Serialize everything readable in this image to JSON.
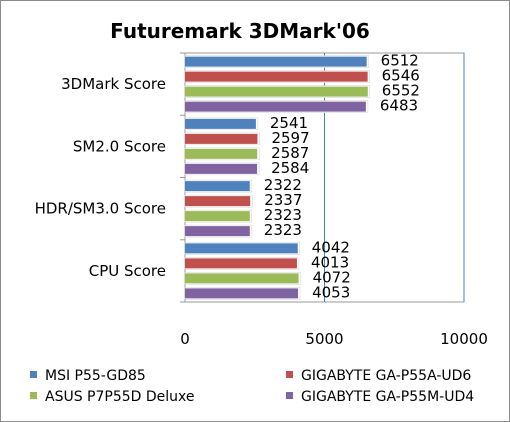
{
  "chart_data": {
    "type": "bar",
    "orientation": "horizontal",
    "title": "Futuremark 3DMark'06",
    "categories": [
      "3DMark Score",
      "SM2.0 Score",
      "HDR/SM3.0 Score",
      "CPU Score"
    ],
    "series": [
      {
        "name": "MSI P55-GD85",
        "color": "#4f81bd",
        "values": [
          6512,
          2541,
          2322,
          4042
        ]
      },
      {
        "name": "GIGABYTE GA-P55A-UD6",
        "color": "#c0504d",
        "values": [
          6546,
          2597,
          2337,
          4013
        ]
      },
      {
        "name": "ASUS P7P55D Deluxe",
        "color": "#9bbb59",
        "values": [
          6552,
          2587,
          2323,
          4072
        ]
      },
      {
        "name": "GIGABYTE GA-P55M-UD4",
        "color": "#8064a2",
        "values": [
          6483,
          2584,
          2323,
          4053
        ]
      }
    ],
    "xlim": [
      0,
      10000
    ],
    "xticks": [
      "0",
      "5000",
      "10000"
    ],
    "grid": true,
    "legend": "bottom"
  }
}
